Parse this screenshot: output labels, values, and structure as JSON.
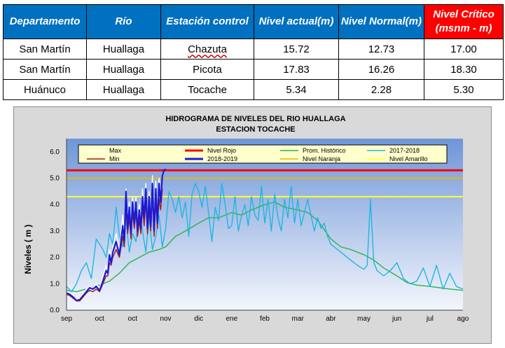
{
  "table": {
    "headers": [
      "Departamento",
      "Río",
      "Estación control",
      "Nivel actual(m)",
      "Nivel Normal(m)",
      "Nivel Crítico (msnm - m)"
    ],
    "rows": [
      [
        "San Martín",
        "Huallaga",
        "Chazuta",
        "15.72",
        "12.73",
        "17.00"
      ],
      [
        "San Martín",
        "Huallaga",
        "Picota",
        "17.83",
        "16.26",
        "18.30"
      ],
      [
        "Huánuco",
        "Huallaga",
        "Tocache",
        "5.34",
        "2.28",
        "5.30"
      ]
    ]
  },
  "chart_data": {
    "type": "line",
    "title": "HIDROGRAMA DE NIVELES DEL RIO HUALLAGA",
    "subtitle": "ESTACION TOCACHE",
    "ylabel": "Niveles ( m )",
    "xlabel": "",
    "ylim": [
      0,
      6.5
    ],
    "yticks": [
      "0.0",
      "1.0",
      "2.0",
      "3.0",
      "4.0",
      "5.0",
      "6.0"
    ],
    "months": [
      "sep",
      "oct",
      "oct",
      "nov",
      "dic",
      "ene",
      "feb",
      "mar",
      "abr",
      "may",
      "jun",
      "jul",
      "ago"
    ],
    "grid": false,
    "legend_position": "top",
    "colors": {
      "background_top": "#6f96d8",
      "background_bottom": "#f4f6fc",
      "legend_bg": "#ffffcc"
    },
    "thresholds": [
      {
        "name": "Nivel Rojo",
        "value": 5.3,
        "color": "#ff0000"
      },
      {
        "name": "Nivel Naranja",
        "value": 5.0,
        "color": "#e8b800"
      },
      {
        "name": "Nivel Amarillo",
        "value": 4.3,
        "color": "#ffff33"
      }
    ],
    "series": [
      {
        "name": "Max",
        "color": "#ffffff",
        "x": [
          0,
          0.1,
          0.2,
          0.3,
          0.4,
          0.5,
          0.6,
          0.7,
          0.8,
          0.9,
          1.0,
          1.1,
          1.2,
          1.25,
          1.3,
          1.35,
          1.4,
          1.5,
          1.6,
          1.7,
          1.75,
          1.8,
          1.85,
          1.9,
          1.95,
          2.0,
          2.05,
          2.1,
          2.15,
          2.2,
          2.25,
          2.3,
          2.35,
          2.4,
          2.45,
          2.5,
          2.55,
          2.6,
          2.65,
          2.7,
          2.75,
          2.8,
          2.85,
          2.9
        ],
        "y": [
          0.7,
          0.65,
          0.55,
          0.4,
          0.45,
          0.6,
          0.8,
          0.9,
          0.85,
          1.0,
          0.8,
          1.3,
          1.7,
          1.5,
          2.3,
          2.0,
          2.4,
          2.9,
          2.3,
          3.6,
          2.8,
          4.6,
          3.4,
          4.1,
          3.0,
          4.3,
          3.6,
          4.3,
          3.2,
          4.0,
          3.3,
          4.6,
          3.7,
          4.8,
          3.3,
          4.5,
          3.4,
          5.1,
          3.2,
          4.9,
          3.6,
          5.0,
          4.4,
          5.2
        ]
      },
      {
        "name": "Nivel Rojo",
        "color": "#ff0000",
        "x": [
          0,
          12
        ],
        "y": [
          5.3,
          5.3
        ]
      },
      {
        "name": "Prom. Histórico",
        "color": "#2db24a",
        "x": [
          0,
          0.3,
          0.6,
          1.0,
          1.3,
          1.6,
          1.9,
          2.2,
          2.5,
          2.8,
          3.0,
          3.3,
          3.6,
          4.0,
          4.3,
          4.6,
          5.0,
          5.3,
          5.6,
          6.0,
          6.3,
          6.6,
          7.0,
          7.3,
          7.6,
          8.0,
          8.3,
          8.6,
          9.0,
          9.3,
          9.6,
          10.0,
          10.3,
          10.6,
          11.0,
          11.3,
          11.6,
          12.0
        ],
        "y": [
          0.75,
          0.7,
          0.8,
          0.95,
          1.1,
          1.4,
          1.8,
          2.0,
          2.2,
          2.3,
          2.4,
          2.8,
          3.0,
          3.3,
          3.5,
          3.5,
          3.7,
          3.6,
          3.8,
          4.0,
          4.1,
          3.9,
          3.8,
          3.7,
          3.4,
          2.7,
          2.4,
          2.3,
          2.1,
          1.9,
          1.6,
          1.3,
          1.05,
          0.95,
          0.9,
          0.85,
          0.8,
          0.75
        ]
      },
      {
        "name": "2017-2018",
        "color": "#21b5e0",
        "x": [
          0,
          0.15,
          0.3,
          0.45,
          0.6,
          0.75,
          0.9,
          1.0,
          1.1,
          1.2,
          1.3,
          1.4,
          1.5,
          1.6,
          1.7,
          1.8,
          1.9,
          2.0,
          2.1,
          2.2,
          2.3,
          2.4,
          2.5,
          2.6,
          2.7,
          2.8,
          2.9,
          3.0,
          3.1,
          3.2,
          3.3,
          3.4,
          3.5,
          3.6,
          3.7,
          3.8,
          3.9,
          4.0,
          4.1,
          4.2,
          4.3,
          4.4,
          4.5,
          4.6,
          4.7,
          4.8,
          4.9,
          5.0,
          5.1,
          5.2,
          5.3,
          5.4,
          5.5,
          5.6,
          5.7,
          5.8,
          5.9,
          6.0,
          6.1,
          6.2,
          6.3,
          6.4,
          6.5,
          6.6,
          6.7,
          6.8,
          6.9,
          7.0,
          7.1,
          7.2,
          7.3,
          7.4,
          7.5,
          7.6,
          7.7,
          7.8,
          7.9,
          8.0,
          8.2,
          8.4,
          8.6,
          8.8,
          9.0,
          9.1,
          9.2,
          9.3,
          9.4,
          9.6,
          9.8,
          10.0,
          10.2,
          10.4,
          10.6,
          10.8,
          11.0,
          11.2,
          11.4,
          11.6,
          11.8,
          12.0
        ],
        "y": [
          0.9,
          0.7,
          1.0,
          1.5,
          1.8,
          1.2,
          2.7,
          2.5,
          2.3,
          2.0,
          2.9,
          2.5,
          3.9,
          2.8,
          2.4,
          3.4,
          2.2,
          2.9,
          2.6,
          3.7,
          3.0,
          2.2,
          3.5,
          2.3,
          2.8,
          3.6,
          2.4,
          3.1,
          4.5,
          4.2,
          3.7,
          4.3,
          3.5,
          4.1,
          2.8,
          4.4,
          4.8,
          4.5,
          3.9,
          4.7,
          3.7,
          2.6,
          3.9,
          3.4,
          4.8,
          4.0,
          3.1,
          3.2,
          4.3,
          3.0,
          3.6,
          4.0,
          3.2,
          4.3,
          3.6,
          3.4,
          4.7,
          3.3,
          4.2,
          3.0,
          4.4,
          3.5,
          3.0,
          4.2,
          3.5,
          4.7,
          3.3,
          4.2,
          3.2,
          3.7,
          4.2,
          3.6,
          3.0,
          3.5,
          3.1,
          3.3,
          2.8,
          2.5,
          2.3,
          2.1,
          1.9,
          1.7,
          1.55,
          1.7,
          4.2,
          1.8,
          1.5,
          1.3,
          1.5,
          1.8,
          1.2,
          1.0,
          1.1,
          1.6,
          0.9,
          1.7,
          0.8,
          1.4,
          0.9,
          0.8
        ]
      },
      {
        "name": "Min",
        "color": "#a01818",
        "x": [
          0,
          0.1,
          0.2,
          0.3,
          0.4,
          0.5,
          0.6,
          0.7,
          0.8,
          0.9,
          1.0,
          1.1,
          1.2,
          1.25,
          1.3,
          1.35,
          1.4,
          1.5,
          1.6,
          1.7,
          1.75,
          1.8,
          1.85,
          1.9,
          1.95,
          2.0,
          2.05,
          2.1,
          2.15,
          2.2,
          2.25,
          2.3,
          2.35,
          2.4,
          2.45,
          2.5,
          2.55,
          2.6,
          2.65,
          2.7,
          2.75,
          2.8,
          2.85,
          2.9
        ],
        "y": [
          0.6,
          0.55,
          0.45,
          0.35,
          0.35,
          0.5,
          0.65,
          0.75,
          0.7,
          0.8,
          0.7,
          1.0,
          1.3,
          1.3,
          1.8,
          1.7,
          2.0,
          2.3,
          2.0,
          2.8,
          2.4,
          3.8,
          2.9,
          3.5,
          2.7,
          3.7,
          3.1,
          3.7,
          2.8,
          3.4,
          2.9,
          3.9,
          3.2,
          4.1,
          2.9,
          3.8,
          3.0,
          4.3,
          2.8,
          4.1,
          3.1,
          4.2,
          3.8,
          4.6
        ]
      },
      {
        "name": "2018-2019",
        "color": "#1a1ad6",
        "x": [
          0,
          0.1,
          0.2,
          0.3,
          0.4,
          0.5,
          0.6,
          0.7,
          0.8,
          0.9,
          1.0,
          1.1,
          1.2,
          1.25,
          1.3,
          1.35,
          1.4,
          1.5,
          1.6,
          1.7,
          1.75,
          1.8,
          1.85,
          1.9,
          1.95,
          2.0,
          2.05,
          2.1,
          2.15,
          2.2,
          2.25,
          2.3,
          2.35,
          2.4,
          2.45,
          2.5,
          2.55,
          2.6,
          2.65,
          2.7,
          2.75,
          2.8,
          2.85,
          2.9,
          2.95,
          3.0
        ],
        "y": [
          0.65,
          0.6,
          0.5,
          0.37,
          0.4,
          0.55,
          0.7,
          0.85,
          0.8,
          0.9,
          0.75,
          1.1,
          1.5,
          1.4,
          2.1,
          1.8,
          2.2,
          2.6,
          2.1,
          3.2,
          2.6,
          4.5,
          3.1,
          3.9,
          2.9,
          4.1,
          3.3,
          4.1,
          3.0,
          3.8,
          3.1,
          4.3,
          3.5,
          4.6,
          3.1,
          4.3,
          3.2,
          4.8,
          3.0,
          4.6,
          3.3,
          4.8,
          4.1,
          5.1,
          5.3,
          5.35
        ]
      },
      {
        "name": "Nivel Naranja",
        "color": "#e8b800",
        "x": [
          0,
          12
        ],
        "y": [
          5.0,
          5.0
        ]
      },
      {
        "name": "Nivel Amarillo",
        "color": "#ffff33",
        "x": [
          0,
          12
        ],
        "y": [
          4.3,
          4.3
        ]
      }
    ]
  }
}
